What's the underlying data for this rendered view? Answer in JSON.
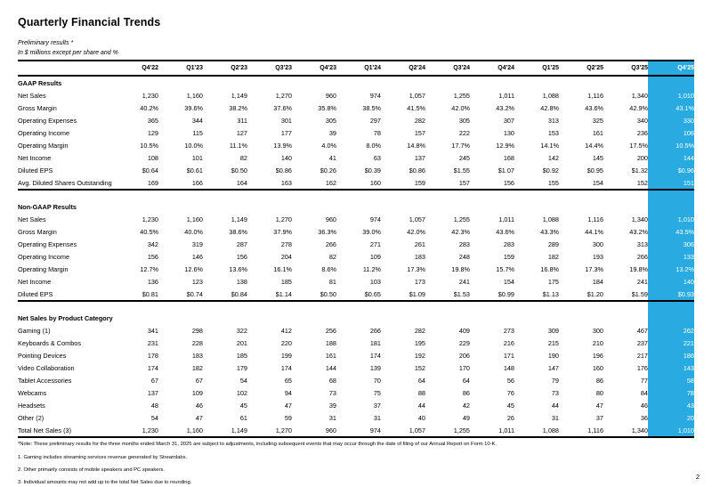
{
  "page": {
    "title": "Quarterly Financial Trends",
    "subtitle_preliminary": "Preliminary results *",
    "subtitle_units": "In $ millions except per share and %",
    "page_number": "2",
    "accent_color": "#29ABE2"
  },
  "table": {
    "columns": [
      "Q4'22",
      "Q1'23",
      "Q2'23",
      "Q3'23",
      "Q4'23",
      "Q1'24",
      "Q2'24",
      "Q3'24",
      "Q4'24",
      "Q1'25",
      "Q2'25",
      "Q3'25",
      "Q4'25"
    ],
    "highlighted_column": "Q4'25",
    "sections": [
      {
        "heading": "GAAP Results",
        "rows": [
          {
            "label": "Net Sales",
            "values": [
              "1,230",
              "1,160",
              "1,149",
              "1,270",
              "960",
              "974",
              "1,057",
              "1,255",
              "1,011",
              "1,088",
              "1,116",
              "1,340",
              "1,010"
            ]
          },
          {
            "label": "Gross Margin",
            "values": [
              "40.2%",
              "39.6%",
              "38.2%",
              "37.6%",
              "35.8%",
              "38.5%",
              "41.5%",
              "42.0%",
              "43.2%",
              "42.8%",
              "43.6%",
              "42.9%",
              "43.1%"
            ]
          },
          {
            "label": "Operating Expenses",
            "values": [
              "365",
              "344",
              "311",
              "301",
              "305",
              "297",
              "282",
              "305",
              "307",
              "313",
              "325",
              "340",
              "330"
            ]
          },
          {
            "label": "Operating Income",
            "values": [
              "129",
              "115",
              "127",
              "177",
              "39",
              "78",
              "157",
              "222",
              "130",
              "153",
              "161",
              "236",
              "106"
            ]
          },
          {
            "label": "Operating Margin",
            "values": [
              "10.5%",
              "10.0%",
              "11.1%",
              "13.9%",
              "4.0%",
              "8.0%",
              "14.8%",
              "17.7%",
              "12.9%",
              "14.1%",
              "14.4%",
              "17.5%",
              "10.5%"
            ]
          },
          {
            "label": "Net Income",
            "values": [
              "108",
              "101",
              "82",
              "140",
              "41",
              "63",
              "137",
              "245",
              "168",
              "142",
              "145",
              "200",
              "144"
            ]
          },
          {
            "label": "Diluted EPS",
            "values": [
              "$0.64",
              "$0.61",
              "$0.50",
              "$0.86",
              "$0.26",
              "$0.39",
              "$0.86",
              "$1.55",
              "$1.07",
              "$0.92",
              "$0.95",
              "$1.32",
              "$0.96"
            ]
          },
          {
            "label": "Avg. Diluted Shares Outstanding",
            "values": [
              "169",
              "166",
              "164",
              "163",
              "162",
              "160",
              "159",
              "157",
              "156",
              "155",
              "154",
              "152",
              "151"
            ]
          }
        ]
      },
      {
        "heading": "Non-GAAP Results",
        "rows": [
          {
            "label": "Net Sales",
            "values": [
              "1,230",
              "1,160",
              "1,149",
              "1,270",
              "960",
              "974",
              "1,057",
              "1,255",
              "1,011",
              "1,088",
              "1,116",
              "1,340",
              "1,010"
            ]
          },
          {
            "label": "Gross Margin",
            "values": [
              "40.5%",
              "40.0%",
              "38.6%",
              "37.9%",
              "36.3%",
              "39.0%",
              "42.0%",
              "42.3%",
              "43.6%",
              "43.3%",
              "44.1%",
              "43.2%",
              "43.5%"
            ]
          },
          {
            "label": "Operating Expenses",
            "values": [
              "342",
              "319",
              "287",
              "278",
              "266",
              "271",
              "261",
              "283",
              "283",
              "289",
              "300",
              "313",
              "306"
            ]
          },
          {
            "label": "Operating Income",
            "values": [
              "156",
              "146",
              "156",
              "204",
              "82",
              "109",
              "183",
              "248",
              "159",
              "182",
              "193",
              "266",
              "133"
            ]
          },
          {
            "label": "Operating Margin",
            "values": [
              "12.7%",
              "12.6%",
              "13.6%",
              "16.1%",
              "8.6%",
              "11.2%",
              "17.3%",
              "19.8%",
              "15.7%",
              "16.8%",
              "17.3%",
              "19.8%",
              "13.2%"
            ]
          },
          {
            "label": "Net Income",
            "values": [
              "136",
              "123",
              "138",
              "185",
              "81",
              "103",
              "173",
              "241",
              "154",
              "175",
              "184",
              "241",
              "140"
            ]
          },
          {
            "label": "Diluted EPS",
            "values": [
              "$0.81",
              "$0.74",
              "$0.84",
              "$1.14",
              "$0.50",
              "$0.65",
              "$1.09",
              "$1.53",
              "$0.99",
              "$1.13",
              "$1.20",
              "$1.59",
              "$0.93"
            ]
          }
        ]
      },
      {
        "heading": "Net Sales by Product Category",
        "rows": [
          {
            "label": "Gaming (1)",
            "values": [
              "341",
              "298",
              "322",
              "412",
              "256",
              "266",
              "282",
              "409",
              "273",
              "309",
              "300",
              "467",
              "262"
            ]
          },
          {
            "label": "Keyboards & Combos",
            "values": [
              "231",
              "228",
              "201",
              "220",
              "188",
              "181",
              "195",
              "229",
              "216",
              "215",
              "210",
              "237",
              "221"
            ]
          },
          {
            "label": "Pointing Devices",
            "values": [
              "178",
              "183",
              "185",
              "199",
              "161",
              "174",
              "192",
              "206",
              "171",
              "190",
              "196",
              "217",
              "186"
            ]
          },
          {
            "label": "Video Collaboration",
            "values": [
              "174",
              "182",
              "179",
              "174",
              "144",
              "139",
              "152",
              "170",
              "148",
              "147",
              "160",
              "176",
              "143"
            ]
          },
          {
            "label": "Tablet Accessories",
            "values": [
              "67",
              "67",
              "54",
              "65",
              "68",
              "70",
              "64",
              "64",
              "56",
              "79",
              "86",
              "77",
              "58"
            ]
          },
          {
            "label": "Webcams",
            "values": [
              "137",
              "109",
              "102",
              "94",
              "73",
              "75",
              "88",
              "86",
              "76",
              "73",
              "80",
              "84",
              "78"
            ]
          },
          {
            "label": "Headsets",
            "values": [
              "48",
              "46",
              "45",
              "47",
              "39",
              "37",
              "44",
              "42",
              "45",
              "44",
              "47",
              "46",
              "43"
            ]
          },
          {
            "label": "Other (2)",
            "values": [
              "54",
              "47",
              "61",
              "59",
              "31",
              "31",
              "40",
              "49",
              "26",
              "31",
              "37",
              "36",
              "20"
            ]
          },
          {
            "label": "Total Net Sales (3)",
            "values": [
              "1,230",
              "1,160",
              "1,149",
              "1,270",
              "960",
              "974",
              "1,057",
              "1,255",
              "1,011",
              "1,088",
              "1,116",
              "1,340",
              "1,010"
            ]
          }
        ]
      }
    ]
  },
  "footnotes": {
    "note": "*Note: These preliminary results for the three months ended March 31, 2025 are subject to adjustments, including subsequent events that may occur through the date of filing of our Annual Report on Form 10-K.",
    "items": [
      "1. Gaming includes streaming services revenue generated by Streamlabs.",
      "2. Other primarily consists of mobile speakers and PC speakers.",
      "3. Individual amounts may not add up to the total Net Sales due to rounding."
    ]
  }
}
